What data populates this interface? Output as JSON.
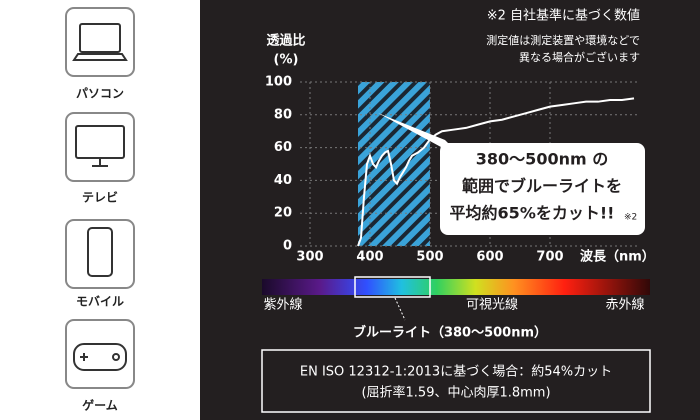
{
  "devices": [
    "パソコン",
    "テレビ",
    "モバイル",
    "ゲーム"
  ],
  "chart_data": {
    "type": "line",
    "ylabel": "透過比",
    "yunit": "(%)",
    "xlabel": "波長（nm）",
    "note": [
      "※2 自社基準に基づく数値",
      "測定値は測定装置や環境などで",
      "異なる場合がございます"
    ],
    "x": [
      380,
      385,
      390,
      395,
      400,
      405,
      410,
      415,
      420,
      425,
      430,
      435,
      440,
      445,
      450,
      455,
      460,
      465,
      470,
      475,
      480,
      490,
      500,
      510,
      520,
      540,
      560,
      580,
      600,
      620,
      640,
      660,
      680,
      700,
      720,
      740,
      760,
      780,
      800,
      820,
      840
    ],
    "series": [
      {
        "name": "透過比",
        "color": "#ffffff",
        "values": [
          0,
          5,
          30,
          50,
          55,
          50,
          48,
          52,
          55,
          57,
          58,
          50,
          40,
          38,
          42,
          45,
          48,
          52,
          55,
          56,
          57,
          60,
          65,
          68,
          70,
          71,
          72,
          74,
          76,
          77,
          79,
          81,
          83,
          85,
          86,
          87,
          88,
          88,
          89,
          89,
          90
        ]
      }
    ],
    "highlight": [
      380,
      500
    ],
    "xlim": [
      300,
      850
    ],
    "xticks": [
      300,
      400,
      500,
      600,
      700
    ],
    "ylim": [
      0,
      100
    ],
    "yticks": [
      0,
      20,
      40,
      60,
      80,
      100
    ],
    "grid": true,
    "callout": [
      "380〜500nm の",
      "範囲でブルーライトを",
      "平均約65%をカット!!",
      "※2"
    ],
    "spectrum_labels": [
      "紫外線",
      "可視光線",
      "赤外線"
    ],
    "bluelight_label": "ブルーライト（380〜500nm）",
    "footnote": [
      "EN ISO 12312-1:2013に基づく場合：約54%カット",
      "(屈折率1.59、中心肉厚1.8mm)"
    ]
  }
}
